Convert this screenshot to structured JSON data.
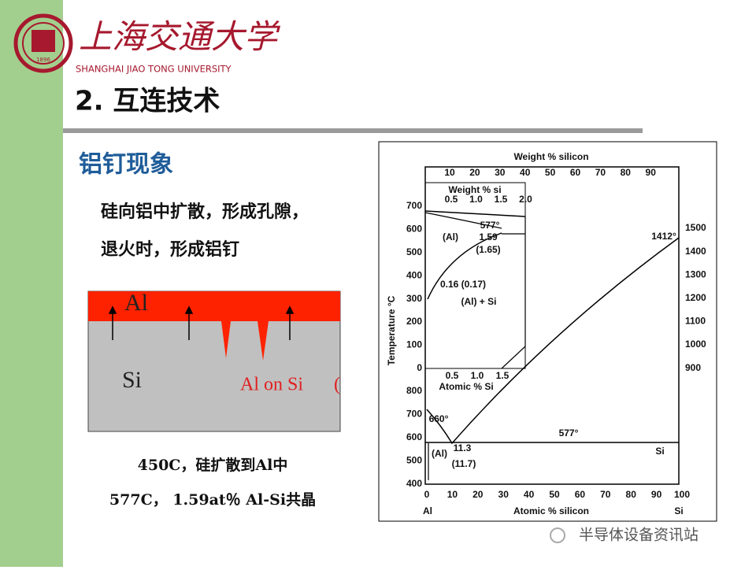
{
  "header": {
    "logo_year": "1896",
    "university_cn": "上海交通大学",
    "university_en": "SHANGHAI JIAO TONG UNIVERSITY",
    "title": "2. 互连技术"
  },
  "section": {
    "heading": "铝钉现象",
    "lines": [
      "硅向铝中扩散，形成孔隙，",
      "退火时，形成铝钉"
    ]
  },
  "illustration": {
    "al": "Al",
    "si": "Si",
    "spike_label": "Al on Si",
    "paren": "("
  },
  "captions": [
    "450C，硅扩散到Al中",
    "577C， 1.59at％ Al-Si共晶"
  ],
  "phase_diagram": {
    "top_axis_title": "Weight % silicon",
    "top_ticks": [
      "10",
      "20",
      "30",
      "40",
      "50",
      "60",
      "70",
      "80",
      "90"
    ],
    "bottom_axis_title": "Atomic % silicon",
    "bottom_ticks": [
      "0",
      "10",
      "20",
      "30",
      "40",
      "50",
      "60",
      "70",
      "80",
      "90",
      "100"
    ],
    "bottom_left": "Al",
    "bottom_right": "Si",
    "y_title": "Temperature °C",
    "left_ticks_inset": [
      "700",
      "600",
      "500",
      "400",
      "300",
      "200",
      "100",
      "0"
    ],
    "left_ticks_main": [
      "800",
      "700",
      "600",
      "500",
      "400"
    ],
    "right_ticks": [
      "1500",
      "1400",
      "1300",
      "1200",
      "1100",
      "1000",
      "900"
    ],
    "inset": {
      "top_title": "Weight % si",
      "top_ticks": [
        "0.5",
        "1.0",
        "1.5",
        "2.0"
      ],
      "bottom_ticks": [
        "0.5",
        "1.0",
        "1.5"
      ],
      "bottom_title": "Atomic % Si",
      "labels": [
        "577°",
        "1.59",
        "(1.65)",
        "(Al)",
        "0.16 (0.17)",
        "(Al) + Si"
      ]
    },
    "labels": [
      "1412°",
      "660°",
      "577°",
      "11.3",
      "(Al)",
      "(11.7)",
      "Si"
    ]
  },
  "watermark": "半导体设备资讯站"
}
